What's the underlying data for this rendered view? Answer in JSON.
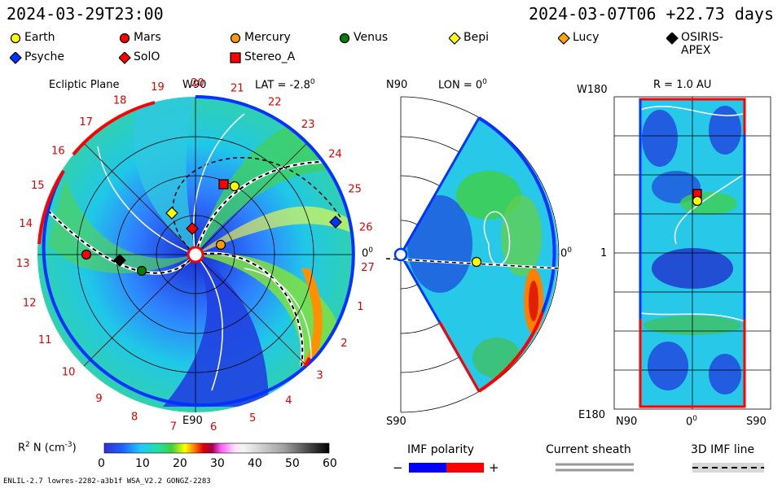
{
  "header": {
    "left_time": "2024-03-29T23:00",
    "right_time": "2024-03-07T06",
    "offset": "+22.73 days"
  },
  "legend": [
    {
      "label": "Earth",
      "color": "#ffff00",
      "shape": "circle"
    },
    {
      "label": "Mars",
      "color": "#ff0000",
      "shape": "circle"
    },
    {
      "label": "Mercury",
      "color": "#ff9900",
      "shape": "circle"
    },
    {
      "label": "Venus",
      "color": "#008000",
      "shape": "circle"
    },
    {
      "label": "Bepi",
      "color": "#ffff00",
      "shape": "diamond"
    },
    {
      "label": "Lucy",
      "color": "#ffa500",
      "shape": "diamond"
    },
    {
      "label": "OSIRIS-APEX",
      "color": "#000000",
      "shape": "diamond"
    },
    {
      "label": "Psyche",
      "color": "#0033ff",
      "shape": "diamond"
    },
    {
      "label": "SolO",
      "color": "#ff0000",
      "shape": "diamond"
    },
    {
      "label": "Stereo_A",
      "color": "#ff0000",
      "shape": "square"
    }
  ],
  "panels": {
    "ecliptic": {
      "title": "Ecliptic Plane",
      "top_label": "W90",
      "lat": "LAT = -2.8",
      "lat_deg": "0",
      "bottom_label": "E90",
      "right_label": "0",
      "right_deg": "0"
    },
    "meridional": {
      "top_left": "N90",
      "lon": "LON = 0",
      "lon_deg": "0",
      "right_label": "0",
      "right_deg": "0",
      "bottom_left": "S90"
    },
    "lonlat": {
      "top_left": "W180",
      "r_label": "R = 1.0 AU",
      "mid_left": "1",
      "bottom_left": "E180",
      "x_left": "N90",
      "x_mid": "0",
      "x_mid_deg": "0",
      "x_right": "S90"
    }
  },
  "rotation_labels": [
    "1",
    "2",
    "3",
    "4",
    "5",
    "6",
    "7",
    "8",
    "9",
    "10",
    "11",
    "12",
    "13",
    "14",
    "15",
    "16",
    "17",
    "18",
    "19",
    "20",
    "21",
    "22",
    "23",
    "24",
    "25",
    "26",
    "27"
  ],
  "colorbar": {
    "label": "R",
    "label_sup": "2",
    "label_rest": " N (cm",
    "label_unit_sup": "-3",
    "label_end": ")",
    "ticks": [
      "0",
      "10",
      "20",
      "30",
      "40",
      "50",
      "60"
    ]
  },
  "imf": {
    "title": "IMF polarity",
    "minus": "−",
    "plus": "+",
    "sheath": "Current sheath",
    "line3d": "3D IMF line"
  },
  "footer": "ENLIL-2.7 lowres-2282-a3b1f WSA_V2.2 GONGZ-2283",
  "chart_data": {
    "type": "heatmap",
    "quantity": "Scaled density R^2 N (cm^-3)",
    "colorbar_range": [
      0,
      60
    ],
    "ecliptic_lat_deg": -2.8,
    "meridional_lon_deg": 0,
    "lonlat_radius_au": 1.0,
    "bodies": [
      "Earth",
      "Mars",
      "Mercury",
      "Venus",
      "Bepi",
      "Lucy",
      "OSIRIS-APEX",
      "Psyche",
      "SolO",
      "Stereo_A"
    ]
  }
}
